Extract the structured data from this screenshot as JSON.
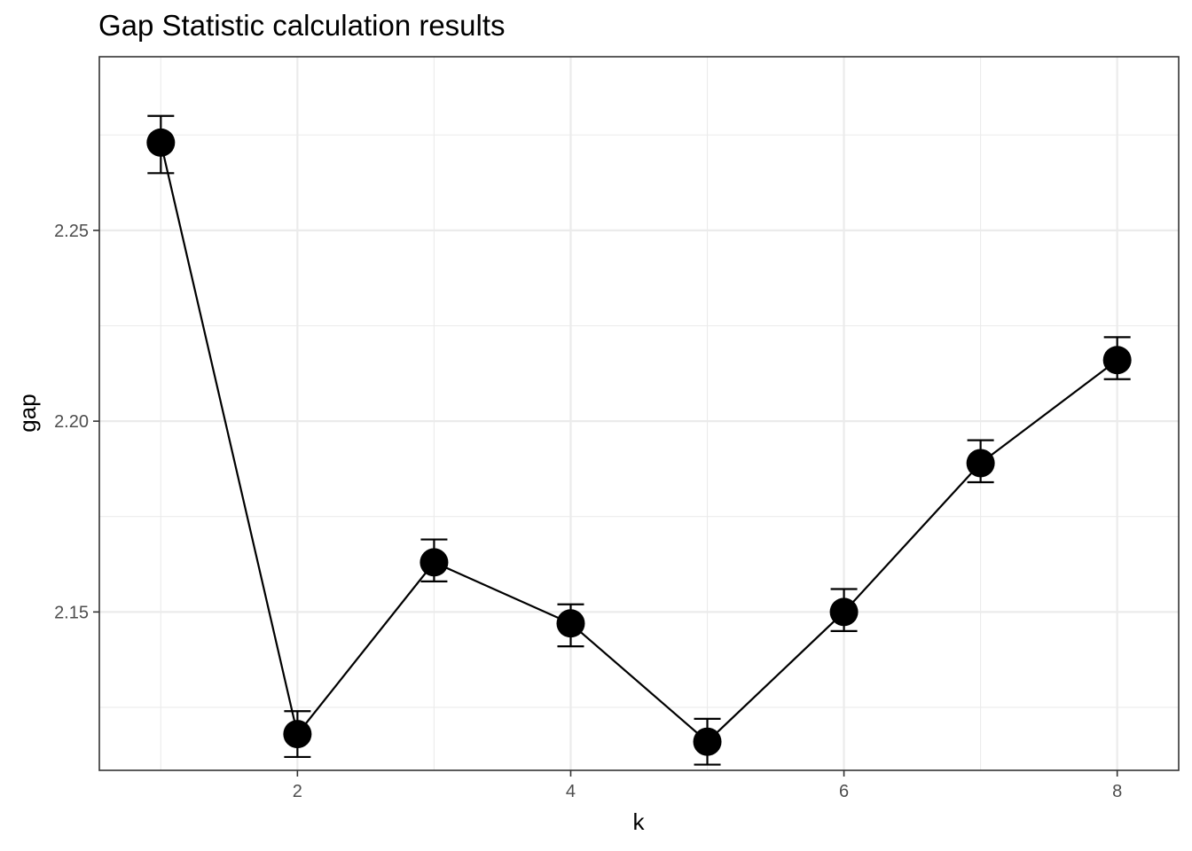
{
  "chart_data": {
    "type": "line",
    "title": "Gap Statistic calculation results",
    "xlabel": "k",
    "ylabel": "gap",
    "xlim": [
      0.55,
      8.45
    ],
    "ylim": [
      2.1085,
      2.2955
    ],
    "x_ticks": [
      2,
      4,
      6,
      8
    ],
    "y_ticks": [
      2.15,
      2.2,
      2.25
    ],
    "x_tick_labels": [
      "2",
      "4",
      "6",
      "8"
    ],
    "y_tick_labels": [
      "2.15",
      "2.20",
      "2.25"
    ],
    "grid": true,
    "series": [
      {
        "x": [
          1,
          2,
          3,
          4,
          5,
          6,
          7,
          8
        ],
        "values": [
          2.273,
          2.118,
          2.163,
          2.147,
          2.116,
          2.15,
          2.189,
          2.216
        ],
        "error_low": [
          2.265,
          2.112,
          2.158,
          2.141,
          2.11,
          2.145,
          2.184,
          2.211
        ],
        "error_high": [
          2.28,
          2.124,
          2.169,
          2.152,
          2.122,
          2.156,
          2.195,
          2.222
        ],
        "color": "#000000"
      }
    ]
  }
}
